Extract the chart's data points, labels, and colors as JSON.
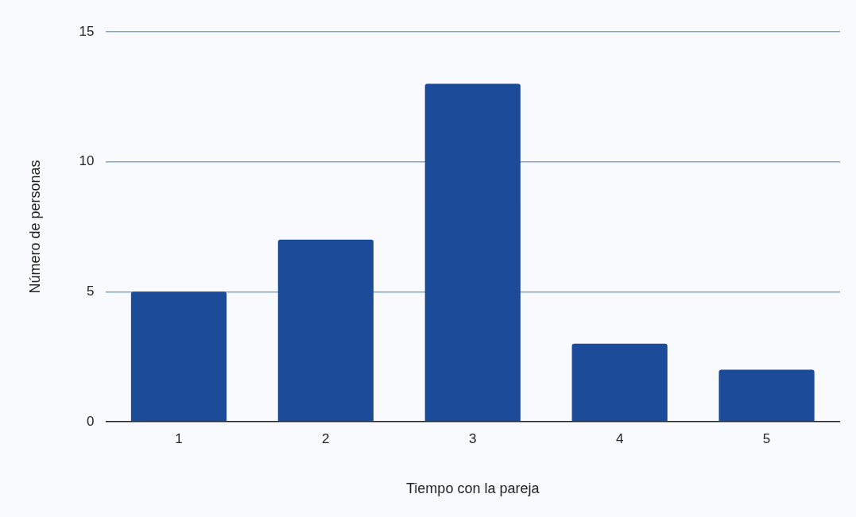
{
  "chart_data": {
    "type": "bar",
    "xlabel": "Tiempo con la pareja",
    "ylabel": "Número de personas",
    "categories": [
      "1",
      "2",
      "3",
      "4",
      "5"
    ],
    "values": [
      5,
      7,
      13,
      3,
      2
    ],
    "color": "#1c4c99",
    "ylim": [
      0,
      15
    ],
    "yticks": [
      0,
      5,
      10,
      15
    ],
    "grid": "y"
  }
}
